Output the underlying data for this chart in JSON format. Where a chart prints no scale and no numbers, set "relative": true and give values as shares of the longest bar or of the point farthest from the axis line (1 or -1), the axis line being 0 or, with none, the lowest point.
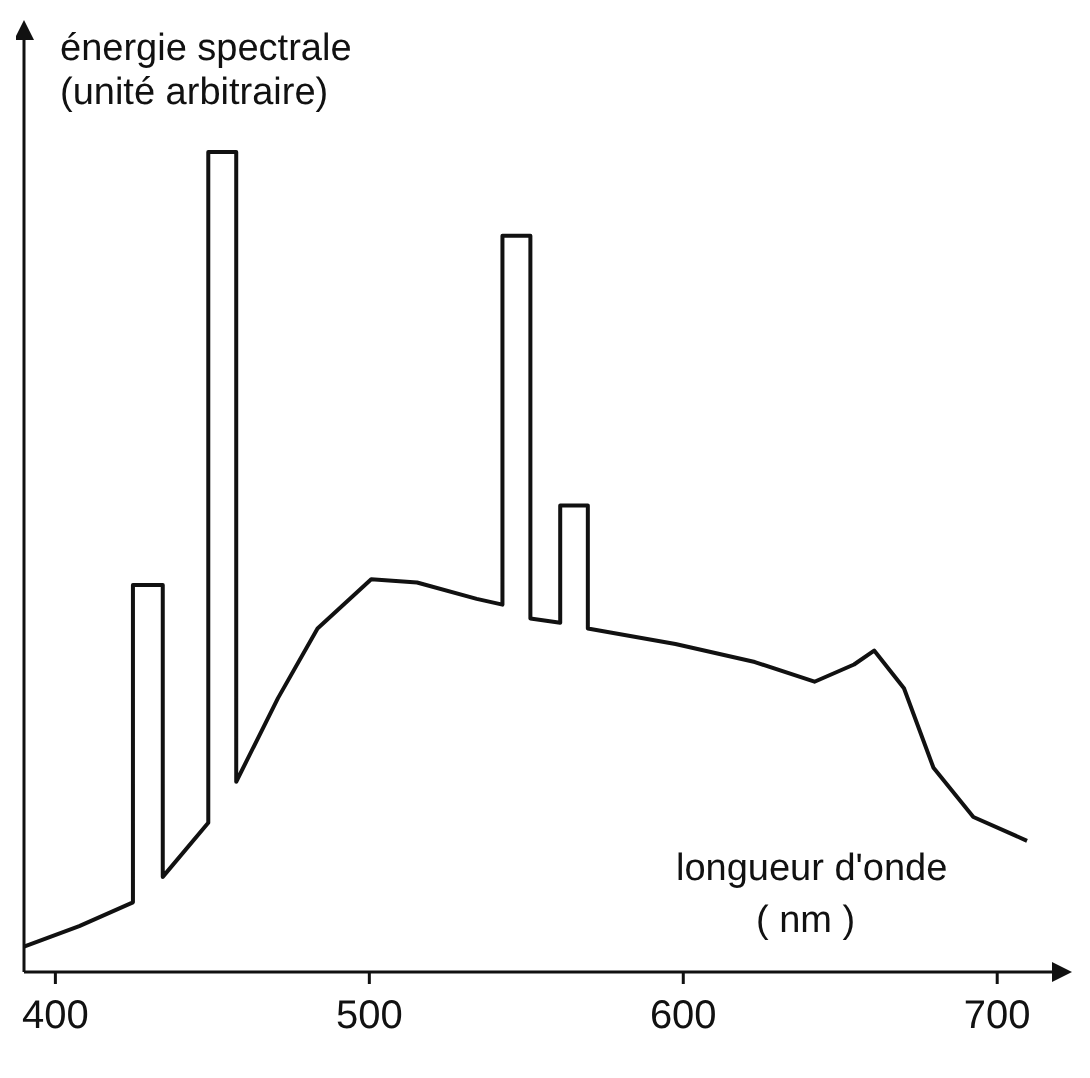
{
  "chart_data": {
    "type": "line",
    "relative": true,
    "ylabel": "énergie spectrale\n(unité arbitraire)",
    "xlabel": "longueur d'onde\n( nm )",
    "xlim": [
      390,
      720
    ],
    "xticks": [
      400,
      500,
      600,
      700
    ],
    "grid": false,
    "marker": "none",
    "line_style": "solid",
    "x": [
      390,
      407.6,
      424.7,
      424.7,
      434.2,
      434.2,
      448.7,
      448.7,
      457.6,
      457.6,
      470.9,
      483.5,
      500.6,
      515.2,
      534.2,
      542.4,
      542.4,
      551.3,
      551.3,
      560.8,
      560.8,
      569.6,
      569.6,
      597.5,
      622.8,
      641.8,
      654.4,
      660.8,
      670.3,
      679.7,
      692.4,
      709.5
    ],
    "series": [
      {
        "color": "#111111",
        "values": [
          0.031,
          0.056,
          0.085,
          0.472,
          0.472,
          0.116,
          0.182,
          1.0,
          1.0,
          0.232,
          0.334,
          0.419,
          0.479,
          0.475,
          0.455,
          0.448,
          0.898,
          0.898,
          0.431,
          0.426,
          0.569,
          0.569,
          0.419,
          0.4,
          0.378,
          0.354,
          0.375,
          0.392,
          0.346,
          0.249,
          0.189,
          0.16
        ]
      }
    ]
  }
}
